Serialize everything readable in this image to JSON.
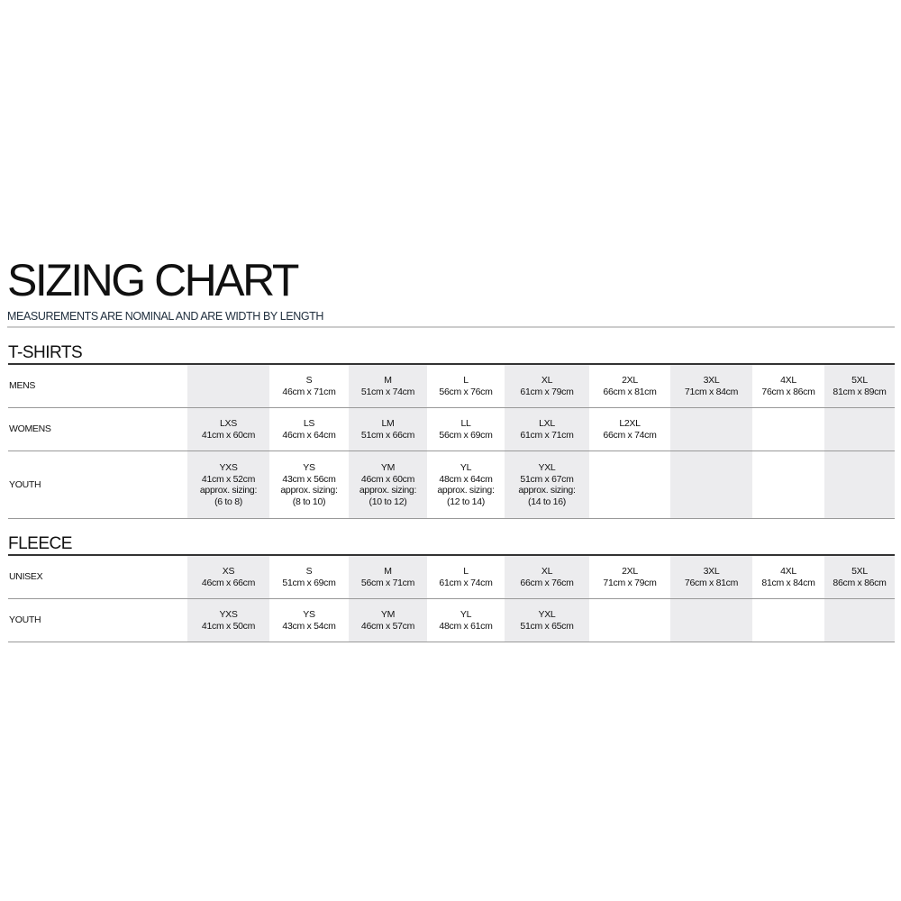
{
  "title": "SIZING CHART",
  "subtitle": "MEASUREMENTS ARE NOMINAL AND ARE WIDTH BY LENGTH",
  "colors": {
    "shaded_column": "#ececee",
    "subtitle": "#1e2d3c"
  },
  "sections": [
    {
      "title": "T-SHIRTS",
      "rows": [
        {
          "label": "MENS",
          "cells": [
            [],
            [
              "S",
              "46cm x 71cm"
            ],
            [
              "M",
              "51cm x 74cm"
            ],
            [
              "L",
              "56cm x 76cm"
            ],
            [
              "XL",
              "61cm x 79cm"
            ],
            [
              "2XL",
              "66cm x 81cm"
            ],
            [
              "3XL",
              "71cm x 84cm"
            ],
            [
              "4XL",
              "76cm x 86cm"
            ],
            [
              "5XL",
              "81cm x 89cm"
            ]
          ]
        },
        {
          "label": "WOMENS",
          "cells": [
            [
              "LXS",
              "41cm x 60cm"
            ],
            [
              "LS",
              "46cm x 64cm"
            ],
            [
              "LM",
              "51cm x 66cm"
            ],
            [
              "LL",
              "56cm x 69cm"
            ],
            [
              "LXL",
              "61cm x 71cm"
            ],
            [
              "L2XL",
              "66cm x 74cm"
            ],
            [],
            [],
            []
          ]
        },
        {
          "label": "YOUTH",
          "cells": [
            [
              "YXS",
              "41cm x 52cm",
              "approx. sizing:",
              "(6 to 8)"
            ],
            [
              "YS",
              "43cm x 56cm",
              "approx. sizing:",
              "(8 to 10)"
            ],
            [
              "YM",
              "46cm x 60cm",
              "approx. sizing:",
              "(10 to 12)"
            ],
            [
              "YL",
              "48cm x 64cm",
              "approx. sizing:",
              "(12 to 14)"
            ],
            [
              "YXL",
              "51cm x 67cm",
              "approx. sizing:",
              "(14 to 16)"
            ],
            [],
            [],
            [],
            []
          ]
        }
      ]
    },
    {
      "title": "FLEECE",
      "rows": [
        {
          "label": "UNISEX",
          "cells": [
            [
              "XS",
              "46cm x 66cm"
            ],
            [
              "S",
              "51cm x 69cm"
            ],
            [
              "M",
              "56cm x 71cm"
            ],
            [
              "L",
              "61cm x 74cm"
            ],
            [
              "XL",
              "66cm x 76cm"
            ],
            [
              "2XL",
              "71cm x 79cm"
            ],
            [
              "3XL",
              "76cm x 81cm"
            ],
            [
              "4XL",
              "81cm x 84cm"
            ],
            [
              "5XL",
              "86cm x 86cm"
            ]
          ]
        },
        {
          "label": "YOUTH",
          "cells": [
            [
              "YXS",
              "41cm x 50cm"
            ],
            [
              "YS",
              "43cm x 54cm"
            ],
            [
              "YM",
              "46cm x 57cm"
            ],
            [
              "YL",
              "48cm x 61cm"
            ],
            [
              "YXL",
              "51cm x 65cm"
            ],
            [],
            [],
            [],
            []
          ]
        }
      ]
    }
  ]
}
